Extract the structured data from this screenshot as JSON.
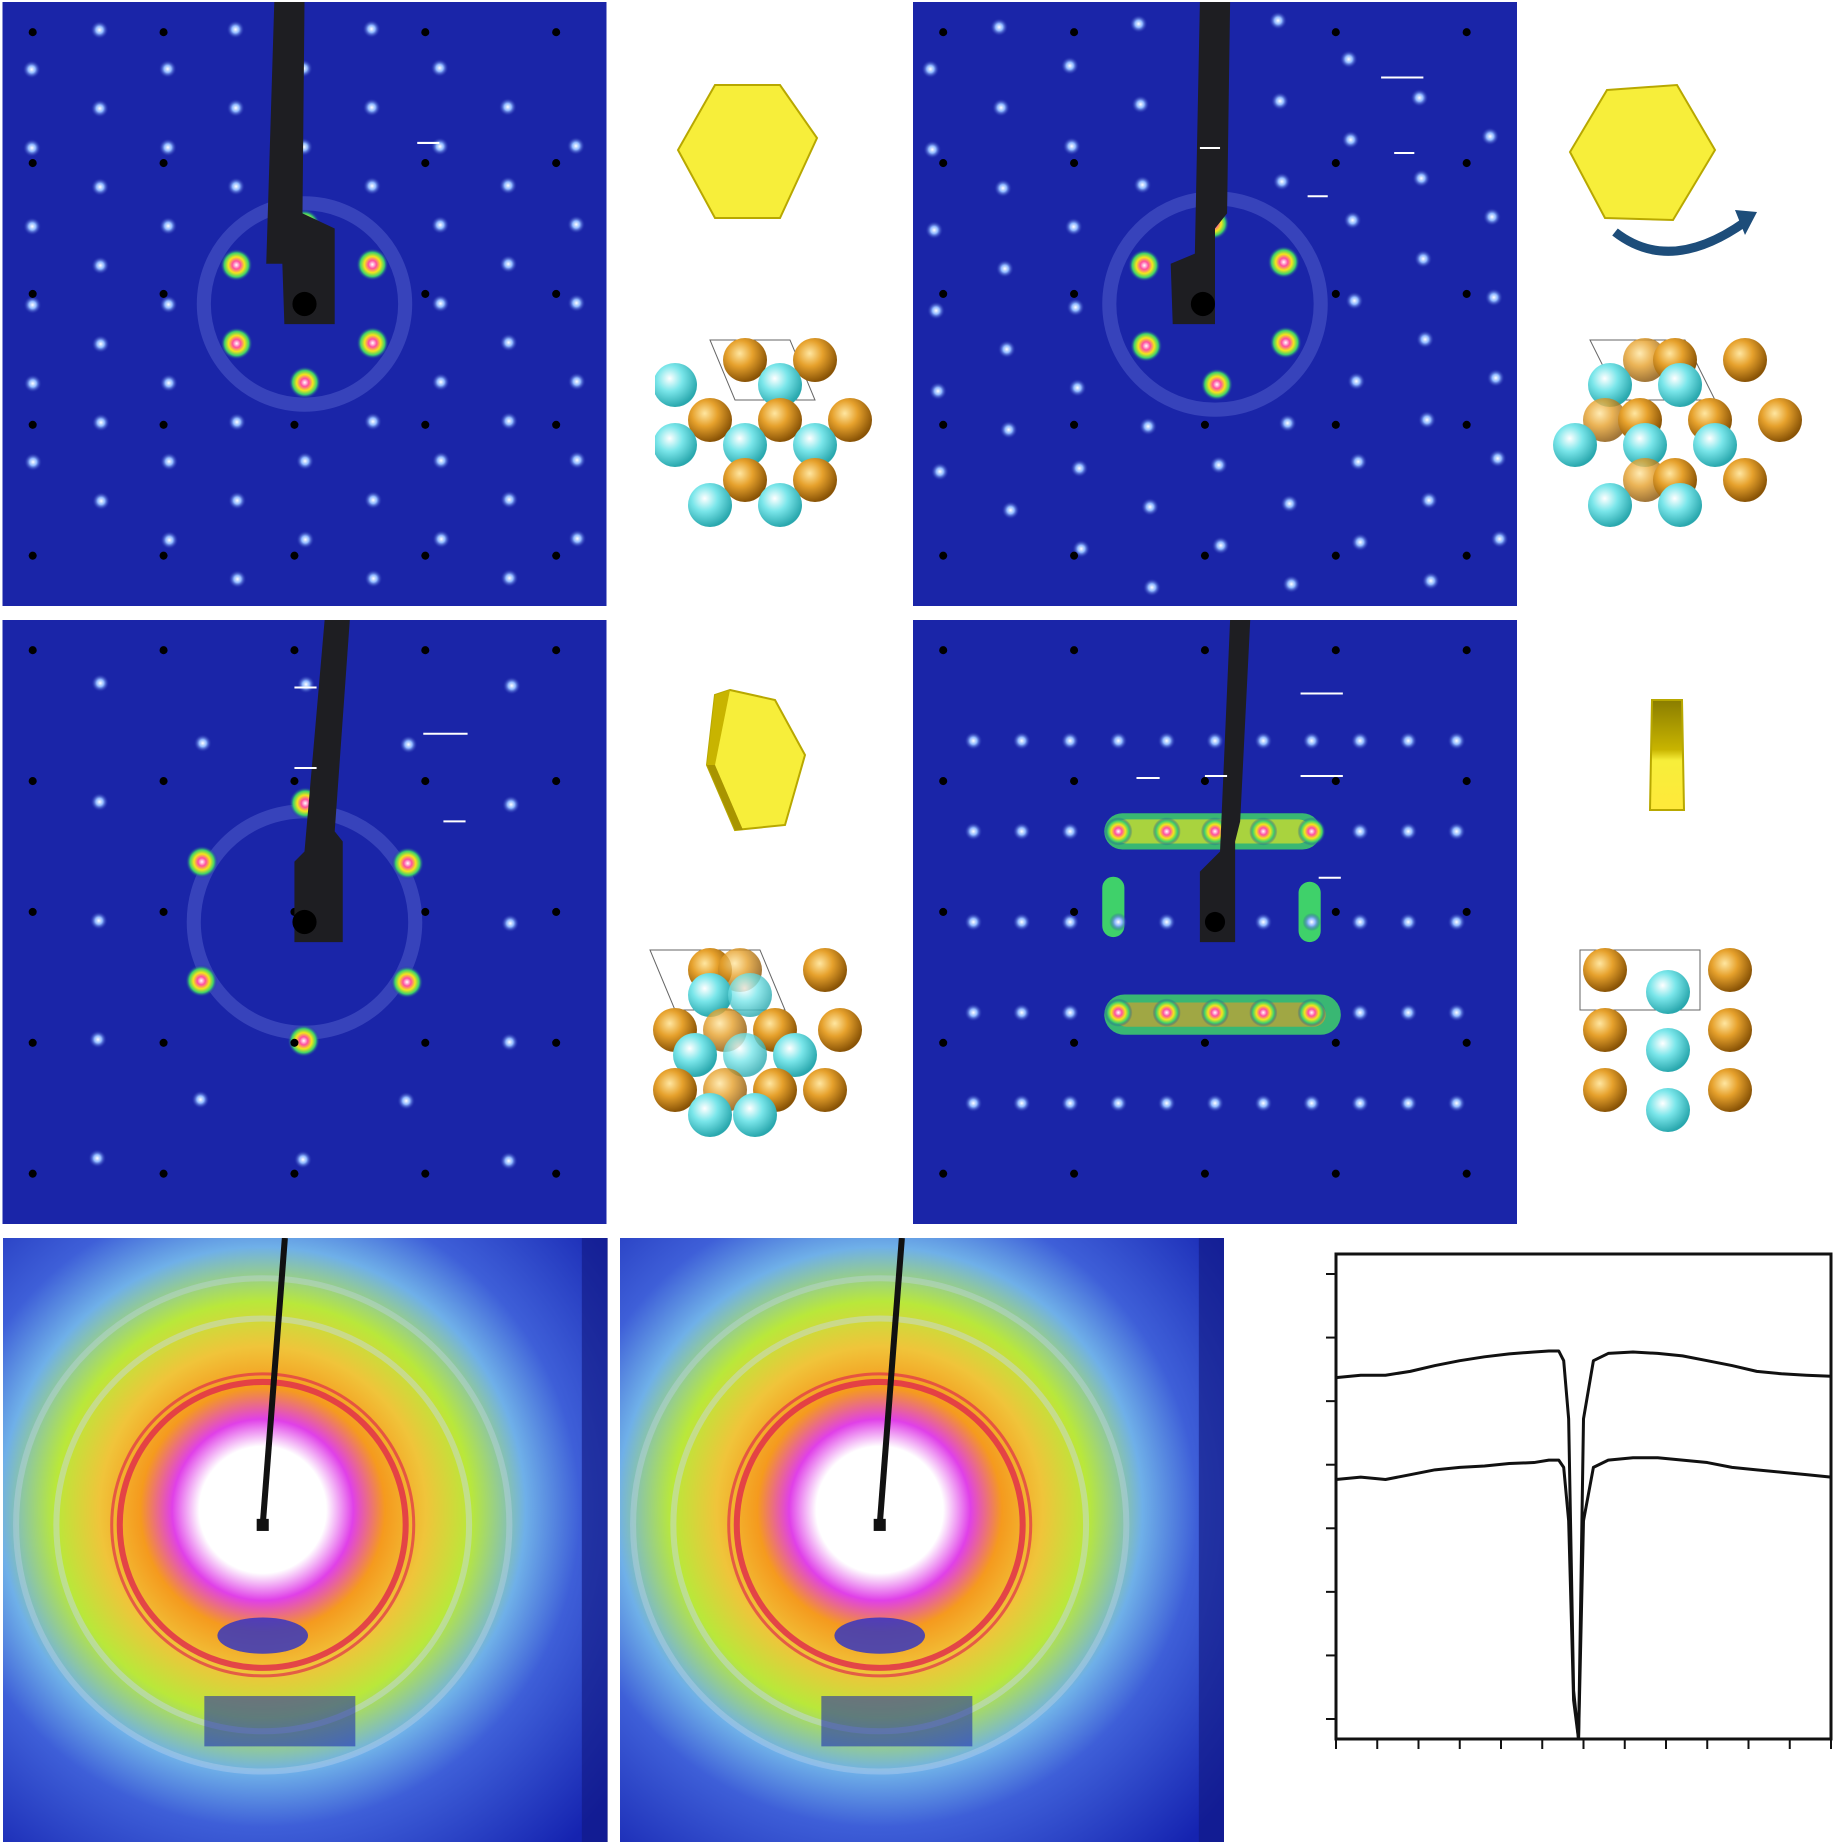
{
  "figure": {
    "background": "#ffffff",
    "colors": {
      "pattern_background": "#1a25a8",
      "spot_core": "#ff4fa0",
      "spot_mid": "#f5e61a",
      "spot_outer": "#3fd16a",
      "beam_stop": "#1e1e22",
      "crystal_face": "#f7ee3a",
      "crystal_edge": "#b8a800",
      "atom_orange": "#d9901c",
      "atom_cyan": "#6fe0e4",
      "rotation_arrow": "#1d4d7a",
      "ring_red": "#e0304a",
      "ring_orange": "#f59a1e",
      "ring_green": "#b9e83a",
      "ring_magenta": "#e040e8",
      "profile_line": "#111111"
    },
    "panels": [
      {
        "id": "saed-a",
        "kind": "diffraction-pattern",
        "symmetry": "hexagonal"
      },
      {
        "id": "plate-a",
        "kind": "crystal-and-lattice",
        "crystal": "hexagonal-plate-face-on",
        "lattice": "hexagonal"
      },
      {
        "id": "saed-b",
        "kind": "diffraction-pattern",
        "symmetry": "hexagonal-tilted"
      },
      {
        "id": "plate-b",
        "kind": "crystal-and-lattice",
        "crystal": "hexagonal-plate-rotated",
        "arrow": "rotation-arrow-icon",
        "lattice": "hexagonal-overlapped"
      },
      {
        "id": "saed-c",
        "kind": "diffraction-pattern",
        "symmetry": "hexagonal-tilted-further"
      },
      {
        "id": "plate-c",
        "kind": "crystal-and-lattice",
        "crystal": "hexagonal-plate-tilted",
        "lattice": "hexagonal-overlapped"
      },
      {
        "id": "saed-d",
        "kind": "diffraction-pattern",
        "symmetry": "rectangular"
      },
      {
        "id": "plate-d",
        "kind": "crystal-and-lattice",
        "crystal": "hexagonal-plate-edge-on",
        "lattice": "rectangular"
      },
      {
        "id": "ring-a",
        "kind": "powder-ring-pattern"
      },
      {
        "id": "ring-b",
        "kind": "powder-ring-pattern"
      },
      {
        "id": "profile",
        "kind": "line-profile-plot"
      }
    ]
  },
  "chart_data": {
    "type": "line",
    "title": "",
    "xlabel": "",
    "ylabel": "",
    "grid": false,
    "legend": "none",
    "xlim": [
      0,
      100
    ],
    "ylim": [
      0,
      100
    ],
    "x_tick_count": 13,
    "y_tick_count": 8,
    "series": [
      {
        "x": [
          0,
          5,
          10,
          15,
          20,
          25,
          30,
          35,
          40,
          43,
          45,
          46,
          47,
          48,
          49,
          50,
          52,
          55,
          60,
          65,
          70,
          75,
          80,
          85,
          90,
          95,
          100
        ],
        "values": [
          74.5,
          75,
          75,
          75.8,
          77,
          78,
          78.8,
          79.4,
          79.8,
          80,
          80,
          78,
          66,
          10,
          0,
          66,
          78,
          79.5,
          79.8,
          79.5,
          79,
          78,
          77,
          75.8,
          75.3,
          75,
          74.8
        ]
      },
      {
        "x": [
          0,
          5,
          10,
          15,
          20,
          25,
          30,
          35,
          40,
          43,
          45,
          46,
          47,
          48,
          49,
          50,
          52,
          55,
          60,
          65,
          70,
          75,
          80,
          85,
          90,
          95,
          100
        ],
        "values": [
          53.5,
          54,
          53.5,
          54.5,
          55.5,
          56,
          56.3,
          56.8,
          57,
          57.5,
          57.5,
          56,
          45,
          8,
          0,
          45,
          56,
          57.5,
          58,
          58,
          57.5,
          57,
          56,
          55.5,
          55,
          54.5,
          54
        ]
      }
    ]
  }
}
